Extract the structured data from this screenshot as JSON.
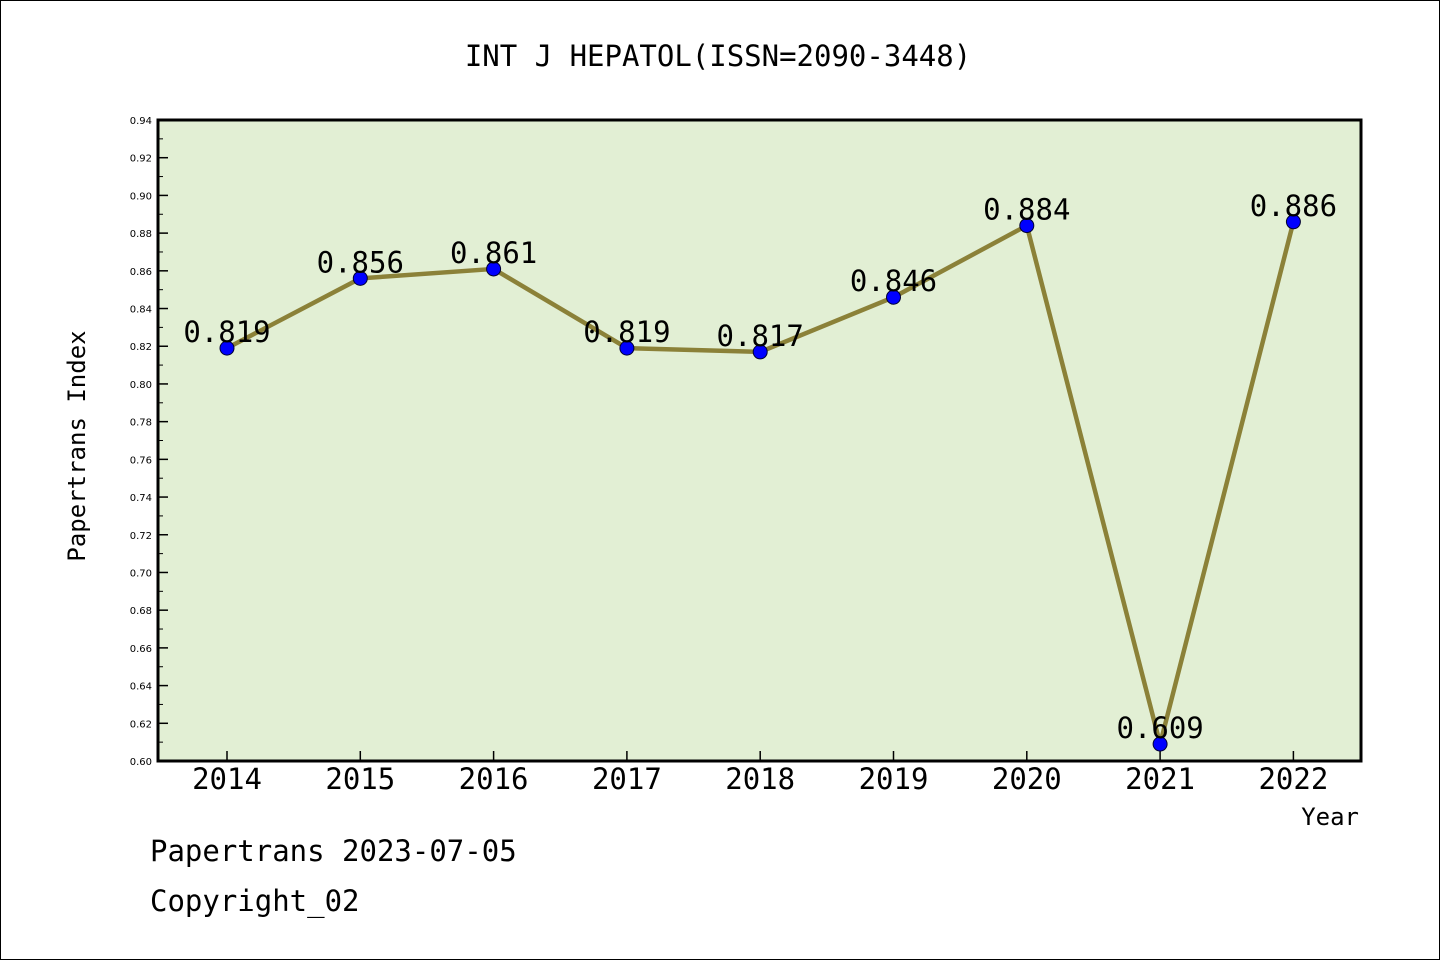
{
  "chart_data": {
    "type": "line",
    "title": "INT J HEPATOL(ISSN=2090-3448)",
    "xlabel": "Year",
    "ylabel": "Papertrans Index",
    "categories": [
      "2014",
      "2015",
      "2016",
      "2017",
      "2018",
      "2019",
      "2020",
      "2021",
      "2022"
    ],
    "values": [
      0.819,
      0.856,
      0.861,
      0.819,
      0.817,
      0.846,
      0.884,
      0.609,
      0.886
    ],
    "data_labels": [
      "0.819",
      "0.856",
      "0.861",
      "0.819",
      "0.817",
      "0.846",
      "0.884",
      "0.609",
      "0.886"
    ],
    "ylim": [
      0.6,
      0.94
    ],
    "y_ticks": [
      "0.60",
      "0.62",
      "0.64",
      "0.66",
      "0.68",
      "0.70",
      "0.72",
      "0.74",
      "0.76",
      "0.78",
      "0.80",
      "0.82",
      "0.84",
      "0.86",
      "0.88",
      "0.90",
      "0.92",
      "0.94"
    ],
    "grid": false,
    "legend": "none",
    "colors": {
      "plot_background": "#e2efd4",
      "line": "#8b8138",
      "marker": "#0000ff"
    }
  },
  "footer": {
    "date_line": "Papertrans 2023-07-05",
    "copyright_line": "Copyright_02"
  }
}
